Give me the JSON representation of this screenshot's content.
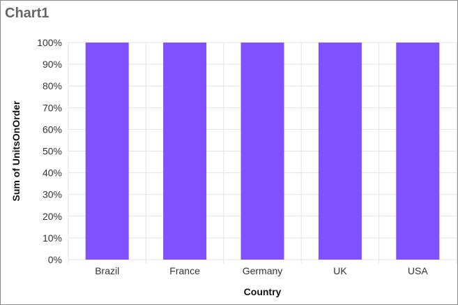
{
  "chart_data": {
    "type": "bar",
    "title": "Chart1",
    "xlabel": "Country",
    "ylabel": "Sum of UnitsOnOrder",
    "categories": [
      "Brazil",
      "France",
      "Germany",
      "UK",
      "USA"
    ],
    "values": [
      100,
      100,
      100,
      100,
      100
    ],
    "ylim": [
      0,
      100
    ],
    "y_ticks": [
      "0%",
      "10%",
      "20%",
      "30%",
      "40%",
      "50%",
      "60%",
      "70%",
      "80%",
      "90%",
      "100%"
    ],
    "grid": true,
    "legend": "none",
    "colors": {
      "bar": "#8150FF",
      "grid": "#e3e3e3",
      "frame": "#8a8a8a"
    }
  }
}
